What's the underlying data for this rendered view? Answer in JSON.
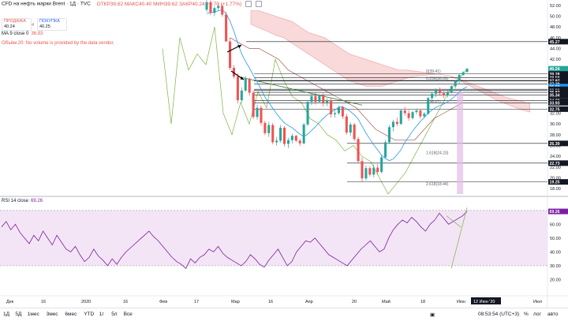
{
  "header": {
    "title": "CFD на нефть марки Brent · 1Д · TVC",
    "ohlc": "ОТКР39.62 МАКС40.40 МИН39.62 ЗАКР40.24 +0.70 (+1.77%)"
  },
  "trade": {
    "sell_label": "ПРОДАЖА",
    "sell_value": "40.24",
    "spread": "4",
    "buy_label": "ПОКУПКА",
    "buy_value": "40.25"
  },
  "ma": {
    "label": "MA 9 close 0",
    "value": "36.93"
  },
  "volume_note": "Объём 20: No volume is provided by the data vendor.",
  "rsi": {
    "label": "RSI 14 close",
    "value": "69.26"
  },
  "colors": {
    "up": "#26a69a",
    "down": "#ef5350",
    "ma": "#2196f3",
    "cloud": "#f8d0cf",
    "fib": "#131722",
    "rsi": "#7b1fa2",
    "rsi_band": "#f3e5f5"
  },
  "chart_data": [
    {
      "type": "candlestick",
      "title": "CFD на нефть марки Brent · 1Д · TVC",
      "ylim": [
        17,
        53
      ],
      "y_ticks": [
        "52.00",
        "50.00",
        "48.00",
        "46.00",
        "44.00",
        "42.00",
        "40.00",
        "38.00",
        "36.00",
        "34.00",
        "32.00",
        "30.00",
        "28.00",
        "26.00",
        "24.00",
        "22.00",
        "20.00",
        "18.00"
      ],
      "x_ticks": [
        "Дек",
        "16",
        "2020",
        "16",
        "Фев",
        "17",
        "Мар",
        "16",
        "Апр",
        "20",
        "Май",
        "18",
        "Июн",
        "Июл"
      ],
      "cursor_date": "12 Июн '20",
      "price_labels": [
        {
          "value": "45.27",
          "kind": "line"
        },
        {
          "value": "40.24",
          "kind": "last"
        },
        {
          "value": "16:06:06",
          "kind": "timer"
        },
        {
          "value": "39.28",
          "kind": "line"
        },
        {
          "value": "38.59",
          "kind": "line"
        },
        {
          "value": "38.07",
          "kind": "line"
        },
        {
          "value": "37.97",
          "kind": "line"
        },
        {
          "value": "37.39",
          "kind": "line"
        },
        {
          "value": "36.93",
          "kind": "ma"
        },
        {
          "value": "36.43",
          "kind": "line"
        },
        {
          "value": "36.26",
          "kind": "line"
        },
        {
          "value": "35.87",
          "kind": "line"
        },
        {
          "value": "35.34",
          "kind": "line"
        },
        {
          "value": "34.32",
          "kind": "line"
        },
        {
          "value": "33.93",
          "kind": "line"
        },
        {
          "value": "32.75",
          "kind": "line"
        },
        {
          "value": "26.39",
          "kind": "line"
        },
        {
          "value": "22.73",
          "kind": "line"
        },
        {
          "value": "19.25",
          "kind": "line"
        }
      ],
      "fib_labels": [
        {
          "text": "0(39.41)",
          "value": 39.41
        },
        {
          "text": "0.236(38.06)",
          "value": 38.06
        },
        {
          "text": "1(33.67)",
          "value": 33.67
        },
        {
          "text": "1.618(24.23)",
          "value": 24.23
        },
        {
          "text": "2.618(18.44)",
          "value": 18.44
        }
      ],
      "candles": [
        {
          "o": 51.2,
          "h": 53.0,
          "l": 50.8,
          "c": 52.6
        },
        {
          "o": 52.6,
          "h": 52.9,
          "l": 50.2,
          "c": 50.6
        },
        {
          "o": 50.6,
          "h": 51.8,
          "l": 50.0,
          "c": 51.5
        },
        {
          "o": 51.5,
          "h": 52.4,
          "l": 51.0,
          "c": 51.9
        },
        {
          "o": 51.9,
          "h": 52.3,
          "l": 49.9,
          "c": 50.3
        },
        {
          "o": 50.3,
          "h": 50.8,
          "l": 45.3,
          "c": 45.3
        },
        {
          "o": 45.3,
          "h": 46.0,
          "l": 40.0,
          "c": 40.4
        },
        {
          "o": 40.4,
          "h": 40.9,
          "l": 38.4,
          "c": 38.8
        },
        {
          "o": 38.8,
          "h": 39.4,
          "l": 33.8,
          "c": 34.4
        },
        {
          "o": 34.4,
          "h": 36.8,
          "l": 33.9,
          "c": 36.2
        },
        {
          "o": 36.2,
          "h": 38.9,
          "l": 36.0,
          "c": 38.4
        },
        {
          "o": 38.4,
          "h": 38.6,
          "l": 35.2,
          "c": 35.8
        },
        {
          "o": 35.8,
          "h": 36.2,
          "l": 30.9,
          "c": 31.3
        },
        {
          "o": 31.3,
          "h": 33.6,
          "l": 30.8,
          "c": 33.0
        },
        {
          "o": 33.0,
          "h": 33.4,
          "l": 29.7,
          "c": 30.2
        },
        {
          "o": 30.2,
          "h": 30.6,
          "l": 27.9,
          "c": 28.3
        },
        {
          "o": 28.3,
          "h": 30.4,
          "l": 27.6,
          "c": 29.8
        },
        {
          "o": 29.8,
          "h": 30.2,
          "l": 26.2,
          "c": 26.6
        },
        {
          "o": 26.6,
          "h": 27.6,
          "l": 26.0,
          "c": 26.9
        },
        {
          "o": 26.9,
          "h": 29.8,
          "l": 26.5,
          "c": 29.3
        },
        {
          "o": 29.3,
          "h": 29.6,
          "l": 25.8,
          "c": 26.3
        },
        {
          "o": 26.3,
          "h": 27.4,
          "l": 25.5,
          "c": 27.0
        },
        {
          "o": 27.0,
          "h": 28.2,
          "l": 26.4,
          "c": 27.8
        },
        {
          "o": 27.8,
          "h": 28.0,
          "l": 26.6,
          "c": 26.9
        },
        {
          "o": 26.9,
          "h": 27.3,
          "l": 25.9,
          "c": 26.4
        },
        {
          "o": 26.4,
          "h": 30.2,
          "l": 26.2,
          "c": 29.9
        },
        {
          "o": 29.9,
          "h": 34.3,
          "l": 29.6,
          "c": 34.1
        },
        {
          "o": 34.1,
          "h": 35.6,
          "l": 33.5,
          "c": 35.2
        },
        {
          "o": 35.2,
          "h": 35.8,
          "l": 33.6,
          "c": 34.1
        },
        {
          "o": 34.1,
          "h": 35.6,
          "l": 33.9,
          "c": 35.3
        },
        {
          "o": 35.3,
          "h": 35.7,
          "l": 33.2,
          "c": 33.8
        },
        {
          "o": 33.8,
          "h": 34.8,
          "l": 33.3,
          "c": 34.4
        },
        {
          "o": 34.4,
          "h": 34.9,
          "l": 31.2,
          "c": 31.8
        },
        {
          "o": 31.8,
          "h": 32.4,
          "l": 31.2,
          "c": 32.0
        },
        {
          "o": 32.0,
          "h": 33.4,
          "l": 31.7,
          "c": 33.1
        },
        {
          "o": 33.1,
          "h": 33.3,
          "l": 30.9,
          "c": 31.4
        },
        {
          "o": 31.4,
          "h": 31.9,
          "l": 28.0,
          "c": 28.4
        },
        {
          "o": 28.4,
          "h": 30.3,
          "l": 27.8,
          "c": 29.9
        },
        {
          "o": 29.9,
          "h": 30.2,
          "l": 26.8,
          "c": 27.2
        },
        {
          "o": 27.2,
          "h": 27.6,
          "l": 22.7,
          "c": 23.1
        },
        {
          "o": 23.1,
          "h": 23.8,
          "l": 19.3,
          "c": 19.9
        },
        {
          "o": 19.9,
          "h": 22.3,
          "l": 19.5,
          "c": 21.8
        },
        {
          "o": 21.8,
          "h": 22.2,
          "l": 20.2,
          "c": 20.6
        },
        {
          "o": 20.6,
          "h": 22.5,
          "l": 20.1,
          "c": 21.9
        },
        {
          "o": 21.9,
          "h": 22.6,
          "l": 20.5,
          "c": 21.1
        },
        {
          "o": 21.1,
          "h": 24.2,
          "l": 20.8,
          "c": 23.8
        },
        {
          "o": 23.8,
          "h": 27.0,
          "l": 23.5,
          "c": 26.6
        },
        {
          "o": 26.6,
          "h": 29.8,
          "l": 26.3,
          "c": 29.4
        },
        {
          "o": 29.4,
          "h": 30.8,
          "l": 28.6,
          "c": 30.4
        },
        {
          "o": 30.4,
          "h": 31.2,
          "l": 29.6,
          "c": 30.0
        },
        {
          "o": 30.0,
          "h": 32.7,
          "l": 29.8,
          "c": 32.5
        },
        {
          "o": 32.5,
          "h": 33.2,
          "l": 31.5,
          "c": 32.0
        },
        {
          "o": 32.0,
          "h": 32.6,
          "l": 30.6,
          "c": 31.1
        },
        {
          "o": 31.1,
          "h": 32.4,
          "l": 30.8,
          "c": 32.2
        },
        {
          "o": 32.2,
          "h": 32.9,
          "l": 31.8,
          "c": 32.5
        },
        {
          "o": 32.5,
          "h": 32.7,
          "l": 31.0,
          "c": 31.4
        },
        {
          "o": 31.4,
          "h": 32.2,
          "l": 31.1,
          "c": 31.9
        },
        {
          "o": 31.9,
          "h": 35.0,
          "l": 31.7,
          "c": 34.8
        },
        {
          "o": 34.8,
          "h": 35.9,
          "l": 34.0,
          "c": 35.6
        },
        {
          "o": 35.6,
          "h": 36.6,
          "l": 35.0,
          "c": 36.3
        },
        {
          "o": 36.3,
          "h": 36.8,
          "l": 35.4,
          "c": 35.7
        },
        {
          "o": 35.7,
          "h": 36.1,
          "l": 34.8,
          "c": 35.3
        },
        {
          "o": 35.3,
          "h": 36.2,
          "l": 34.9,
          "c": 35.9
        },
        {
          "o": 35.9,
          "h": 37.2,
          "l": 35.6,
          "c": 37.0
        },
        {
          "o": 37.0,
          "h": 38.1,
          "l": 36.6,
          "c": 37.9
        },
        {
          "o": 37.9,
          "h": 39.4,
          "l": 37.5,
          "c": 39.1
        },
        {
          "o": 39.1,
          "h": 39.8,
          "l": 38.9,
          "c": 39.6
        },
        {
          "o": 39.62,
          "h": 40.4,
          "l": 39.62,
          "c": 40.24
        }
      ],
      "ma9": [
        50.5,
        50.7,
        50.8,
        51.0,
        51.2,
        50.5,
        49.1,
        47.2,
        45.0,
        43.0,
        41.6,
        40.4,
        39.0,
        37.8,
        36.4,
        35.0,
        34.0,
        32.9,
        31.9,
        31.0,
        30.2,
        29.7,
        29.3,
        28.7,
        28.1,
        27.7,
        28.1,
        28.8,
        29.5,
        30.3,
        31.0,
        31.7,
        32.2,
        32.6,
        33.1,
        33.2,
        32.8,
        32.3,
        31.7,
        30.9,
        29.6,
        28.3,
        27.2,
        26.1,
        25.2,
        24.2,
        23.6,
        23.2,
        23.5,
        24.3,
        25.2,
        26.6,
        27.6,
        28.7,
        29.6,
        30.5,
        31.2,
        32.0,
        32.6,
        33.1,
        33.4,
        33.7,
        34.1,
        34.6,
        35.2,
        35.9,
        36.5,
        36.93
      ],
      "cloud": [
        {
          "a": 51,
          "b": 48.5
        },
        {
          "a": 51,
          "b": 47.8
        },
        {
          "a": 50.5,
          "b": 47.2
        },
        {
          "a": 50,
          "b": 46.5
        },
        {
          "a": 49.5,
          "b": 46
        },
        {
          "a": 49,
          "b": 45
        },
        {
          "a": 48,
          "b": 44
        },
        {
          "a": 47,
          "b": 43
        },
        {
          "a": 46.5,
          "b": 42
        },
        {
          "a": 46,
          "b": 41
        },
        {
          "a": 45,
          "b": 40
        },
        {
          "a": 44,
          "b": 39
        },
        {
          "a": 43,
          "b": 38
        },
        {
          "a": 42.5,
          "b": 37.5
        },
        {
          "a": 42,
          "b": 37
        },
        {
          "a": 41.5,
          "b": 37
        },
        {
          "a": 41,
          "b": 37
        },
        {
          "a": 40.5,
          "b": 37.5
        },
        {
          "a": 40,
          "b": 38
        },
        {
          "a": 40,
          "b": 38.5
        },
        {
          "a": 39.8,
          "b": 38.8
        },
        {
          "a": 39.6,
          "b": 39
        },
        {
          "a": 39.4,
          "b": 39.2
        },
        {
          "a": 39.2,
          "b": 39.2
        },
        {
          "a": 39,
          "b": 39
        },
        {
          "a": 38.6,
          "b": 38.4
        },
        {
          "a": 38,
          "b": 37.6
        },
        {
          "a": 37.4,
          "b": 36.8
        },
        {
          "a": 36.8,
          "b": 36
        },
        {
          "a": 36.2,
          "b": 35.2
        },
        {
          "a": 35.6,
          "b": 34.4
        },
        {
          "a": 35,
          "b": 33.8
        },
        {
          "a": 34.6,
          "b": 33.2
        },
        {
          "a": 34.2,
          "b": 32.6
        },
        {
          "a": 33.8,
          "b": 32.2
        }
      ],
      "rsi": {
        "ylim": [
          10,
          75
        ],
        "y_ticks": [
          "70.00",
          "60.00",
          "50.00",
          "40.00",
          "30.00",
          "20.00"
        ],
        "band": [
          30,
          70
        ],
        "values": [
          58,
          62,
          56,
          60,
          54,
          50,
          46,
          52,
          48,
          55,
          50,
          45,
          52,
          47,
          42,
          40,
          44,
          38,
          33,
          36,
          42,
          37,
          34,
          30,
          35,
          31,
          36,
          40,
          43,
          46,
          49,
          52,
          55,
          51,
          48,
          44,
          40,
          36,
          33,
          31,
          28,
          35,
          32,
          36,
          38,
          42,
          40,
          44,
          39,
          36,
          34,
          32,
          30,
          33,
          38,
          35,
          31,
          29,
          34,
          38,
          42,
          36,
          30,
          33,
          40,
          44,
          48,
          47,
          50,
          46,
          42,
          38,
          36,
          34,
          32,
          30,
          34,
          38,
          42,
          45,
          48,
          44,
          40,
          42,
          50,
          56,
          60,
          63,
          61,
          65,
          62,
          58,
          55,
          60,
          63,
          68,
          64,
          60,
          62,
          64,
          66,
          69.26
        ],
        "last": "69.26"
      }
    }
  ],
  "bottom_bar": {
    "timeframes": [
      "1Д",
      "5Д",
      "1мес",
      "3мес",
      "6мес",
      "YTD",
      "1г",
      "5л",
      "Все"
    ],
    "time": "08:53:54 (UTC+3)",
    "percent": "%",
    "log": "лог",
    "auto": "авто"
  }
}
